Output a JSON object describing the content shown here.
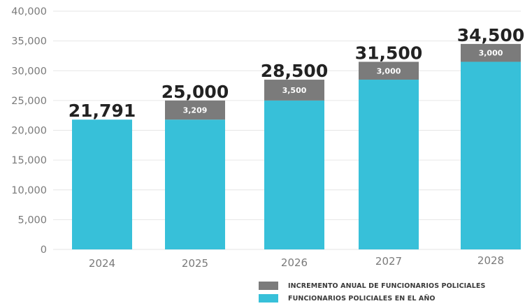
{
  "chart_data": {
    "type": "bar",
    "stacked": true,
    "categories": [
      "2024",
      "2025",
      "2026",
      "2027",
      "2028"
    ],
    "series": [
      {
        "name": "FUNCIONARIOS POLICIALES EN EL AÑO",
        "color": "#37c0d9",
        "values": [
          21791,
          21791,
          25000,
          28500,
          31500
        ]
      },
      {
        "name": "INCREMENTO ANUAL DE FUNCIONARIOS POLICIALES",
        "color": "#7b7b7b",
        "values": [
          0,
          3209,
          3500,
          3000,
          3000
        ],
        "value_labels": [
          "",
          "3,209",
          "3,500",
          "3,000",
          "3,000"
        ]
      }
    ],
    "totals": [
      21791,
      25000,
      28500,
      31500,
      34500
    ],
    "total_labels": [
      "21,791",
      "25,000",
      "28,500",
      "31,500",
      "34,500"
    ],
    "ylim": [
      0,
      40000
    ],
    "yticks": [
      0,
      5000,
      10000,
      15000,
      20000,
      25000,
      30000,
      35000,
      40000
    ],
    "ytick_labels": [
      "0",
      "5,000",
      "10,000",
      "15,000",
      "20,000",
      "25,000",
      "30,000",
      "35,000",
      "40,000"
    ],
    "grid": true,
    "legend_position": "bottom-right",
    "xlabel": "",
    "ylabel": ""
  },
  "legend": {
    "increment_label": "INCREMENTO ANUAL DE FUNCIONARIOS POLICIALES",
    "base_label": "FUNCIONARIOS POLICIALES EN EL AÑO"
  },
  "colors": {
    "base": "#37c0d9",
    "increment": "#7b7b7b",
    "grid": "#e6e6e6",
    "axis_text": "#7a7a7a",
    "total_text": "#222222"
  }
}
